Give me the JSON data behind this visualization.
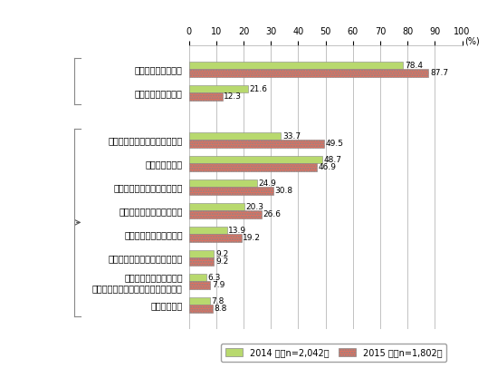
{
  "categories": [
    "何らかの対策を実施",
    "特に実施していない",
    "",
    "個人情報保護管理責任者の設置",
    "社内教育の充実",
    "プライバシーポリシーの策定",
    "必要な個人情報の絞り込み",
    "システムや体制の再構築",
    "プライバシーマーク制度の取得",
    "外注先の選定要件の強化\n（プライバシーマーク取得の有無等）",
    "その他の対策"
  ],
  "values_2014": [
    78.4,
    21.6,
    null,
    33.7,
    48.7,
    24.9,
    20.3,
    13.9,
    9.2,
    6.3,
    7.8
  ],
  "values_2015": [
    87.7,
    12.3,
    null,
    49.5,
    46.9,
    30.8,
    26.6,
    19.2,
    9.2,
    7.9,
    8.8
  ],
  "color_2014": "#b8d96e",
  "color_2015": "#e07060",
  "xlim": [
    0,
    100
  ],
  "xticks": [
    0,
    10,
    20,
    30,
    40,
    50,
    60,
    70,
    80,
    90,
    100
  ],
  "xlabel_unit": "(%)",
  "legend_2014": "2014 年（n=2,042）",
  "legend_2015": "2015 年（n=1,802）",
  "bar_height": 0.32,
  "background_color": "#ffffff",
  "label_fontsize": 7.0,
  "value_fontsize": 6.5
}
